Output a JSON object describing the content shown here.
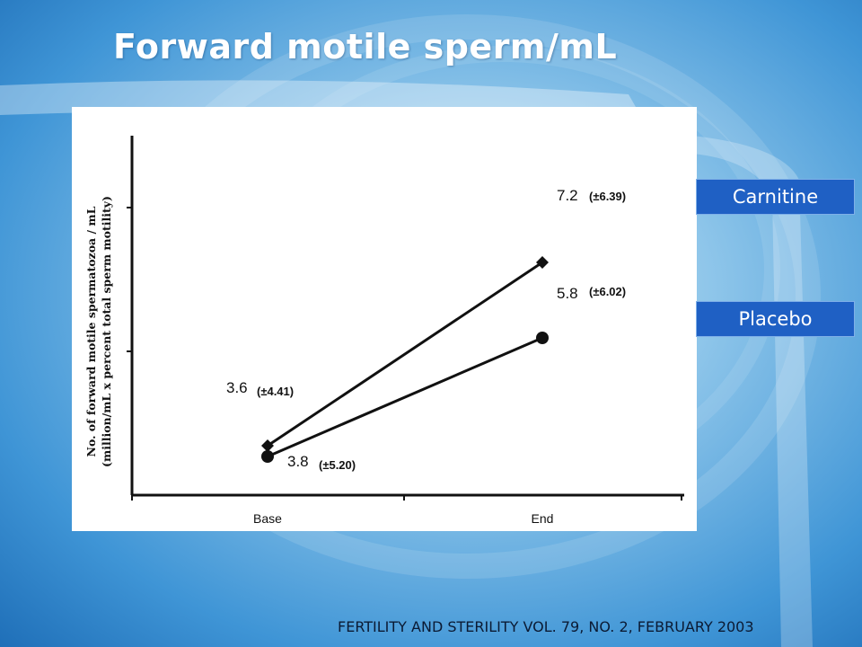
{
  "slide": {
    "title": "Forward motile sperm/mL",
    "citation": "FERTILITY AND STERILITY VOL. 79, NO. 2, FEBRUARY 2003"
  },
  "legend": {
    "carnitine_label": "Carnitine",
    "placebo_label": "Placebo",
    "box_color": "#1f60c4"
  },
  "chart_data": {
    "type": "line",
    "categories": [
      "Base",
      "End"
    ],
    "ylabel_line1": "No. of forward motile spermatozoa / mL",
    "ylabel_line2": "(million/mL  x percent total sperm motility)",
    "xlabel": "",
    "series": [
      {
        "name": "Carnitine",
        "marker": "diamond",
        "values": [
          3.8,
          7.2
        ],
        "labels": [
          "3.8",
          "7.2"
        ],
        "sd_labels": [
          "(±5.20)",
          "(±6.39)"
        ]
      },
      {
        "name": "Placebo",
        "marker": "circle",
        "values": [
          3.6,
          5.8
        ],
        "labels": [
          "3.6",
          "5.8"
        ],
        "sd_labels": [
          "(±4.41)",
          "(±6.02)"
        ]
      }
    ],
    "grid": false
  }
}
